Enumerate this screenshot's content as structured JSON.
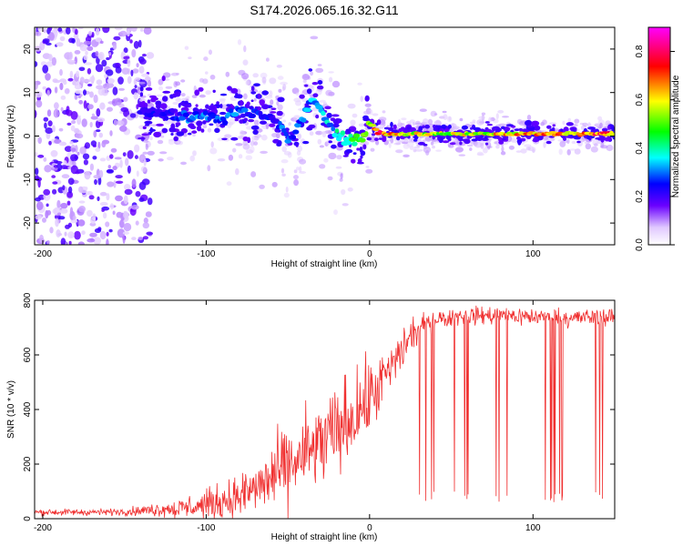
{
  "title": "S174.2026.065.16.32.G11",
  "chart_data": [
    {
      "type": "heatmap",
      "xlabel": "Height of straight line (km)",
      "ylabel": "Frequency (Hz)",
      "xlim": [
        -205,
        150
      ],
      "ylim": [
        -25,
        25
      ],
      "xticks": [
        -200,
        -100,
        0,
        100
      ],
      "yticks": [
        -20,
        -10,
        0,
        10,
        20
      ],
      "xtick_labels": [
        "-200",
        "-100",
        "0",
        "100"
      ],
      "ytick_labels": [
        "-20",
        "-10",
        "0",
        "10",
        "20"
      ],
      "colorbar": {
        "label": "Normalized spectral amplitude",
        "range": [
          0,
          0.9
        ],
        "ticks": [
          0.0,
          0.2,
          0.4,
          0.6,
          0.8
        ],
        "tick_labels": [
          "0.0",
          "0.2",
          "0.4",
          "0.6",
          "0.8"
        ],
        "colormap": [
          "#ffffff",
          "#6a00ff",
          "#0000ff",
          "#00ffff",
          "#00ff00",
          "#ffff00",
          "#ff0000",
          "#ff00ff"
        ]
      },
      "ridge": {
        "x": [
          -140,
          -130,
          -120,
          -110,
          -100,
          -90,
          -80,
          -70,
          -60,
          -55,
          -50,
          -45,
          -40,
          -35,
          -30,
          -25,
          -20,
          -15,
          -10,
          -5,
          0,
          5,
          10,
          20,
          40,
          60,
          80,
          100,
          120,
          150
        ],
        "frequency": [
          6,
          5,
          5,
          4,
          5,
          4,
          6,
          5,
          4,
          3,
          -1,
          1,
          5,
          8,
          7,
          3,
          1,
          -1,
          -1,
          -1,
          3,
          1,
          0.5,
          0.5,
          0.5,
          0.5,
          0.5,
          0.5,
          0.5,
          0.5
        ],
        "amplitude": [
          0.2,
          0.25,
          0.25,
          0.3,
          0.3,
          0.3,
          0.3,
          0.25,
          0.25,
          0.3,
          0.3,
          0.3,
          0.3,
          0.35,
          0.35,
          0.35,
          0.4,
          0.45,
          0.5,
          0.5,
          0.55,
          0.8,
          0.7,
          0.6,
          0.6,
          0.6,
          0.65,
          0.7,
          0.7,
          0.75
        ]
      },
      "noise_region_x": [
        -205,
        -140
      ]
    },
    {
      "type": "line",
      "xlabel": "Height of straight line (km)",
      "ylabel": "SNR (10 * v/v)",
      "xlim": [
        -205,
        150
      ],
      "ylim": [
        0,
        800
      ],
      "xticks": [
        -200,
        -100,
        0,
        100
      ],
      "yticks": [
        0,
        200,
        400,
        600,
        800
      ],
      "xtick_labels": [
        "-200",
        "-100",
        "0",
        "100"
      ],
      "ytick_labels": [
        "0",
        "200",
        "400",
        "600",
        "800"
      ],
      "series": [
        {
          "name": "SNR",
          "color": "#f03030",
          "envelope_x": [
            -205,
            -180,
            -160,
            -140,
            -120,
            -100,
            -80,
            -70,
            -60,
            -50,
            -40,
            -30,
            -20,
            -10,
            0,
            10,
            20,
            30,
            40,
            50,
            60,
            80,
            100,
            120,
            150
          ],
          "envelope_mean": [
            20,
            20,
            20,
            25,
            35,
            50,
            80,
            110,
            150,
            190,
            230,
            270,
            320,
            380,
            440,
            520,
            620,
            700,
            730,
            740,
            745,
            745,
            740,
            735,
            740
          ],
          "envelope_spread": [
            10,
            10,
            10,
            15,
            30,
            50,
            70,
            90,
            110,
            130,
            140,
            150,
            150,
            140,
            120,
            100,
            70,
            40,
            30,
            30,
            30,
            30,
            30,
            30,
            30
          ]
        }
      ]
    }
  ]
}
